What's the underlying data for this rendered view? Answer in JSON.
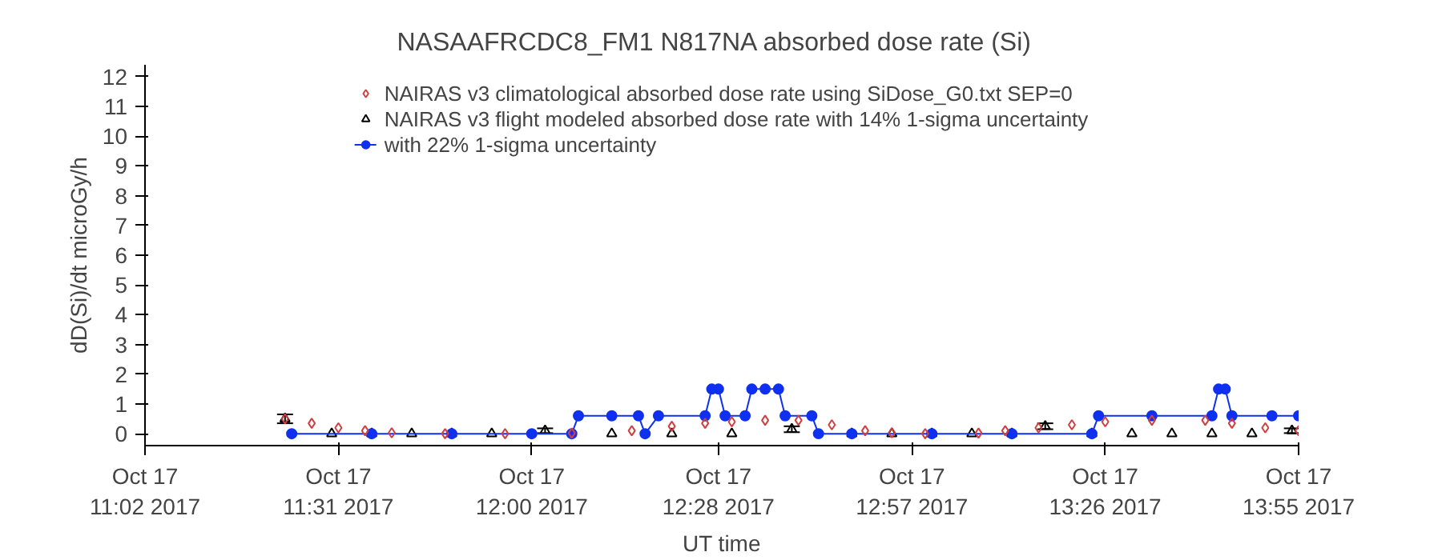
{
  "chart_data": {
    "type": "line",
    "title": "NASAAFRCDC8_FM1   N817NA absorbed dose rate (Si)",
    "xlabel": "UT time",
    "ylabel": "dD(Si)/dt microGy/h",
    "xlim": [
      "2017-10-17T11:02",
      "2017-10-17T13:55"
    ],
    "ylim": [
      -0.4,
      12.4
    ],
    "xticks": [
      {
        "value": "2017-10-17T11:02",
        "label": "Oct 17\n11:02 2017"
      },
      {
        "value": "2017-10-17T11:31",
        "label": "Oct 17\n11:31 2017"
      },
      {
        "value": "2017-10-17T12:00",
        "label": "Oct 17\n12:00 2017"
      },
      {
        "value": "2017-10-17T12:28",
        "label": "Oct 17\n12:28 2017"
      },
      {
        "value": "2017-10-17T12:57",
        "label": "Oct 17\n12:57 2017"
      },
      {
        "value": "2017-10-17T13:26",
        "label": "Oct 17\n13:26 2017"
      },
      {
        "value": "2017-10-17T13:55",
        "label": "Oct 17\n13:55 2017"
      }
    ],
    "yticks": [
      0,
      1,
      2,
      3,
      4,
      5,
      6,
      7,
      8,
      9,
      10,
      11,
      12
    ],
    "grid": false,
    "legend": "top",
    "series": [
      {
        "name": "NAIRAS v3 climatological absorbed dose rate using SiDose_G0.txt SEP=0",
        "type": "scatter",
        "color": "#d04040",
        "marker": "diamond",
        "x": [
          "2017-10-17T11:23",
          "2017-10-17T11:27",
          "2017-10-17T11:31",
          "2017-10-17T11:35",
          "2017-10-17T11:39",
          "2017-10-17T11:47",
          "2017-10-17T11:56",
          "2017-10-17T12:06",
          "2017-10-17T12:15",
          "2017-10-17T12:21",
          "2017-10-17T12:26",
          "2017-10-17T12:30",
          "2017-10-17T12:35",
          "2017-10-17T12:40",
          "2017-10-17T12:45",
          "2017-10-17T12:50",
          "2017-10-17T12:54",
          "2017-10-17T12:59",
          "2017-10-17T13:07",
          "2017-10-17T13:11",
          "2017-10-17T13:16",
          "2017-10-17T13:21",
          "2017-10-17T13:26",
          "2017-10-17T13:33",
          "2017-10-17T13:41",
          "2017-10-17T13:45",
          "2017-10-17T13:50",
          "2017-10-17T13:55"
        ],
        "values": [
          0.5,
          0.35,
          0.2,
          0.1,
          0.03,
          0.0,
          0.0,
          0.02,
          0.1,
          0.25,
          0.35,
          0.4,
          0.45,
          0.45,
          0.3,
          0.1,
          0.03,
          0.0,
          0.02,
          0.1,
          0.2,
          0.3,
          0.4,
          0.45,
          0.45,
          0.35,
          0.2,
          0.1
        ]
      },
      {
        "name": "NAIRAS v3 flight modeled absorbed dose rate with 14% 1-sigma uncertainty",
        "type": "scatter",
        "color": "#000000",
        "marker": "triangle",
        "x": [
          "2017-10-17T11:23",
          "2017-10-17T11:30",
          "2017-10-17T11:36",
          "2017-10-17T11:42",
          "2017-10-17T11:48",
          "2017-10-17T11:54",
          "2017-10-17T12:02",
          "2017-10-17T12:12",
          "2017-10-17T12:21",
          "2017-10-17T12:30",
          "2017-10-17T12:39",
          "2017-10-17T12:48",
          "2017-10-17T12:54",
          "2017-10-17T13:00",
          "2017-10-17T13:06",
          "2017-10-17T13:12",
          "2017-10-17T13:17",
          "2017-10-17T13:24",
          "2017-10-17T13:30",
          "2017-10-17T13:36",
          "2017-10-17T13:42",
          "2017-10-17T13:48",
          "2017-10-17T13:54"
        ],
        "values": [
          0.5,
          0,
          0,
          0,
          0,
          0,
          0.1,
          0,
          0,
          0,
          0.15,
          0,
          0,
          0,
          0,
          0,
          0.25,
          0,
          0,
          0,
          0,
          0,
          0.1
        ],
        "errors": [
          0.15,
          null,
          null,
          null,
          null,
          null,
          0.08,
          null,
          null,
          null,
          0.1,
          null,
          null,
          null,
          null,
          null,
          0.1,
          null,
          null,
          null,
          null,
          null,
          0.08
        ]
      },
      {
        "name": "with 22% 1-sigma uncertainty",
        "color": "#1030f0",
        "marker": "circle",
        "line_style": "solid",
        "x": [
          "2017-10-17T11:24",
          "2017-10-17T11:36",
          "2017-10-17T11:48",
          "2017-10-17T12:00",
          "2017-10-17T12:06",
          "2017-10-17T12:07",
          "2017-10-17T12:12",
          "2017-10-17T12:16",
          "2017-10-17T12:17",
          "2017-10-17T12:19",
          "2017-10-17T12:26",
          "2017-10-17T12:27",
          "2017-10-17T12:28",
          "2017-10-17T12:29",
          "2017-10-17T12:32",
          "2017-10-17T12:33",
          "2017-10-17T12:35",
          "2017-10-17T12:37",
          "2017-10-17T12:38",
          "2017-10-17T12:42",
          "2017-10-17T12:43",
          "2017-10-17T12:48",
          "2017-10-17T13:00",
          "2017-10-17T13:12",
          "2017-10-17T13:24",
          "2017-10-17T13:25",
          "2017-10-17T13:33",
          "2017-10-17T13:42",
          "2017-10-17T13:43",
          "2017-10-17T13:44",
          "2017-10-17T13:45",
          "2017-10-17T13:51",
          "2017-10-17T13:55"
        ],
        "values": [
          0,
          0,
          0,
          0,
          0,
          0.6,
          0.6,
          0.6,
          0,
          0.6,
          0.6,
          1.5,
          1.5,
          0.6,
          0.6,
          1.5,
          1.5,
          1.5,
          0.6,
          0.6,
          0,
          0,
          0,
          0,
          0,
          0.6,
          0.6,
          0.6,
          1.5,
          1.5,
          0.6,
          0.6,
          0.6
        ]
      }
    ]
  }
}
